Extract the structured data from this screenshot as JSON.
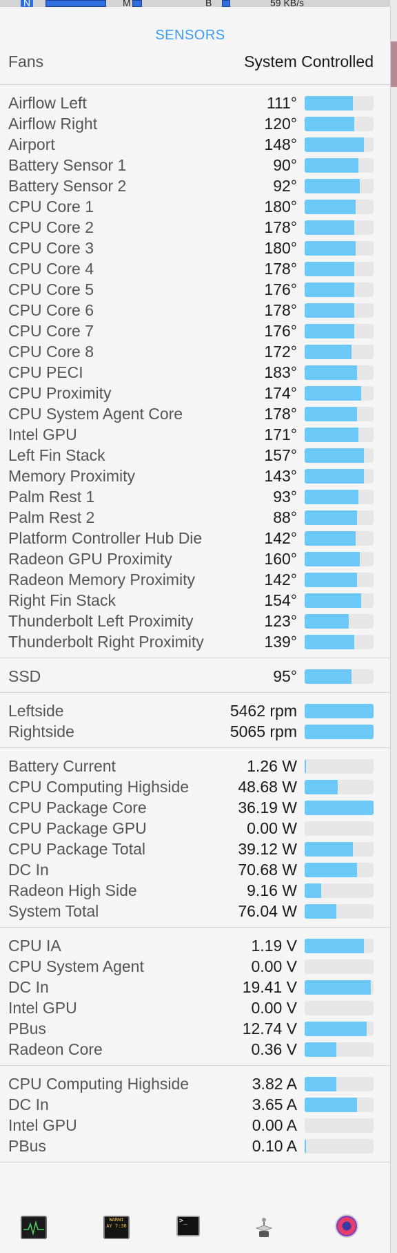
{
  "menubar": {
    "items": [
      {
        "label": "N"
      },
      {
        "label": "M"
      },
      {
        "label": "B"
      },
      {
        "label": "59 KB/s"
      }
    ]
  },
  "panel": {
    "title": "SENSORS",
    "fans_header": {
      "label": "Fans",
      "value": "System Controlled"
    }
  },
  "sections": [
    {
      "id": "temperatures",
      "rows": [
        {
          "name": "Airflow Left",
          "value": "111°",
          "level": 0.7
        },
        {
          "name": "Airflow Right",
          "value": "120°",
          "level": 0.72
        },
        {
          "name": "Airport",
          "value": "148°",
          "level": 0.86
        },
        {
          "name": "Battery Sensor 1",
          "value": "90°",
          "level": 0.78
        },
        {
          "name": "Battery Sensor 2",
          "value": "92°",
          "level": 0.8
        },
        {
          "name": "CPU Core 1",
          "value": "180°",
          "level": 0.74
        },
        {
          "name": "CPU Core 2",
          "value": "178°",
          "level": 0.72
        },
        {
          "name": "CPU Core 3",
          "value": "180°",
          "level": 0.74
        },
        {
          "name": "CPU Core 4",
          "value": "178°",
          "level": 0.72
        },
        {
          "name": "CPU Core 5",
          "value": "176°",
          "level": 0.72
        },
        {
          "name": "CPU Core 6",
          "value": "178°",
          "level": 0.72
        },
        {
          "name": "CPU Core 7",
          "value": "176°",
          "level": 0.72
        },
        {
          "name": "CPU Core 8",
          "value": "172°",
          "level": 0.68
        },
        {
          "name": "CPU PECI",
          "value": "183°",
          "level": 0.76
        },
        {
          "name": "CPU Proximity",
          "value": "174°",
          "level": 0.82
        },
        {
          "name": "CPU System Agent Core",
          "value": "178°",
          "level": 0.76
        },
        {
          "name": "Intel GPU",
          "value": "171°",
          "level": 0.78
        },
        {
          "name": "Left Fin Stack",
          "value": "157°",
          "level": 0.86
        },
        {
          "name": "Memory Proximity",
          "value": "143°",
          "level": 0.86
        },
        {
          "name": "Palm Rest 1",
          "value": "93°",
          "level": 0.78
        },
        {
          "name": "Palm Rest 2",
          "value": "88°",
          "level": 0.76
        },
        {
          "name": "Platform Controller Hub Die",
          "value": "142°",
          "level": 0.74
        },
        {
          "name": "Radeon GPU Proximity",
          "value": "160°",
          "level": 0.8
        },
        {
          "name": "Radeon Memory Proximity",
          "value": "142°",
          "level": 0.76
        },
        {
          "name": "Right Fin Stack",
          "value": "154°",
          "level": 0.82
        },
        {
          "name": "Thunderbolt Left Proximity",
          "value": "123°",
          "level": 0.64
        },
        {
          "name": "Thunderbolt Right Proximity",
          "value": "139°",
          "level": 0.72
        }
      ]
    },
    {
      "id": "ssd",
      "rows": [
        {
          "name": "SSD",
          "value": "95°",
          "level": 0.68
        }
      ]
    },
    {
      "id": "fans",
      "rows": [
        {
          "name": "Leftside",
          "value": "5462 rpm",
          "level": 1.0
        },
        {
          "name": "Rightside",
          "value": "5065 rpm",
          "level": 1.0
        }
      ]
    },
    {
      "id": "power",
      "rows": [
        {
          "name": "Battery Current",
          "value": "1.26 W",
          "level": 0.02
        },
        {
          "name": "CPU Computing Highside",
          "value": "48.68 W",
          "level": 0.48
        },
        {
          "name": "CPU Package Core",
          "value": "36.19 W",
          "level": 1.0
        },
        {
          "name": "CPU Package GPU",
          "value": "0.00 W",
          "level": 0.0
        },
        {
          "name": "CPU Package Total",
          "value": "39.12 W",
          "level": 0.7
        },
        {
          "name": "DC In",
          "value": "70.68 W",
          "level": 0.76
        },
        {
          "name": "Radeon High Side",
          "value": "9.16 W",
          "level": 0.24
        },
        {
          "name": "System Total",
          "value": "76.04 W",
          "level": 0.46
        }
      ]
    },
    {
      "id": "voltage",
      "rows": [
        {
          "name": "CPU IA",
          "value": "1.19 V",
          "level": 0.86
        },
        {
          "name": "CPU System Agent",
          "value": "0.00 V",
          "level": 0.0
        },
        {
          "name": "DC In",
          "value": "19.41 V",
          "level": 0.96
        },
        {
          "name": "Intel GPU",
          "value": "0.00 V",
          "level": 0.0
        },
        {
          "name": "PBus",
          "value": "12.74 V",
          "level": 0.9
        },
        {
          "name": "Radeon Core",
          "value": "0.36 V",
          "level": 0.46
        }
      ]
    },
    {
      "id": "current",
      "rows": [
        {
          "name": "CPU Computing Highside",
          "value": "3.82 A",
          "level": 0.46
        },
        {
          "name": "DC In",
          "value": "3.65 A",
          "level": 0.76
        },
        {
          "name": "Intel GPU",
          "value": "0.00 A",
          "level": 0.0
        },
        {
          "name": "PBus",
          "value": "0.10 A",
          "level": 0.02
        }
      ]
    }
  ],
  "bottombar": {
    "icons": [
      {
        "name": "activity-monitor-icon"
      },
      {
        "name": "console-icon",
        "label": "WARNI\nAY 7:36"
      },
      {
        "name": "terminal-icon",
        "label": ">_"
      },
      {
        "name": "system-utility-icon"
      },
      {
        "name": "istat-menus-icon"
      }
    ]
  },
  "colors": {
    "accent": "#3a9cf5",
    "bar_fill": "#6bc8f7",
    "bar_track": "#e7e7e7"
  }
}
